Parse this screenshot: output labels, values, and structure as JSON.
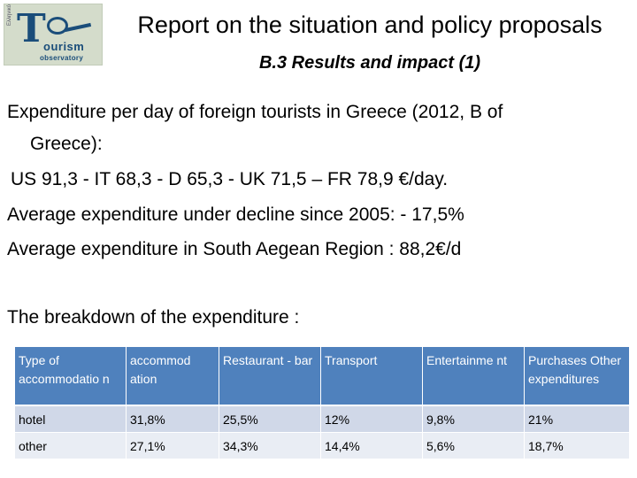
{
  "logo": {
    "side_text": "Eλληνικό",
    "main_letter": "T",
    "word1": "ourism",
    "word2": "observatory"
  },
  "header": {
    "title": "Report on the situation and policy proposals",
    "subtitle": "B.3 Results and impact (1)"
  },
  "content": {
    "line1": "Expenditure per day of foreign tourists in Greece  (2012, B of",
    "line2": "Greece):",
    "line3": "US 91,3 - IT 68,3 - D 65,3 -  UK 71,5 – FR 78,9 €/day.",
    "line4": "Average expenditure under decline since 2005: - 17,5%",
    "line5": "Average expenditure in South Aegean Region : 88,2€/d",
    "breakdown_heading": "The breakdown of the expenditure :"
  },
  "table": {
    "headers": [
      "Type of accommodatio n",
      "accommod ation",
      "Restaurant - bar",
      "Transport",
      "Entertainme nt",
      "Purchases Other expenditures"
    ],
    "rows": [
      [
        "hotel",
        "31,8%",
        "25,5%",
        "12%",
        "9,8%",
        "21%"
      ],
      [
        "other",
        "27,1%",
        "34,3%",
        "14,4%",
        "5,6%",
        "18,7%"
      ]
    ]
  },
  "colors": {
    "header_bg": "#4f81bd",
    "row1_bg": "#d0d8e8",
    "row2_bg": "#e9edf4"
  }
}
